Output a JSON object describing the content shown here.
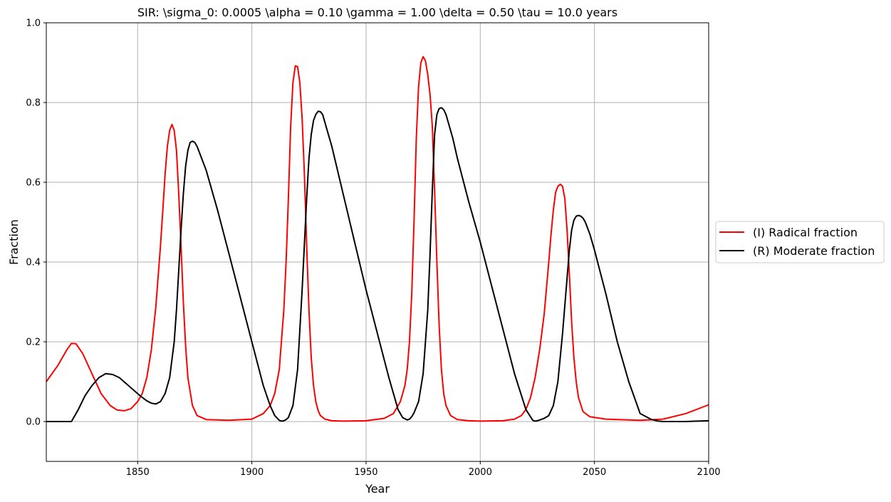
{
  "chart_data": {
    "type": "line",
    "title": "SIR: \\sigma_0: 0.0005 \\alpha = 0.10 \\gamma = 1.00 \\delta = 0.50 \\tau = 10.0 years",
    "xlabel": "Year",
    "ylabel": "Fraction",
    "xlim": [
      1810,
      2100
    ],
    "ylim": [
      -0.1,
      1.0
    ],
    "xticks": [
      1850,
      1900,
      1950,
      2000,
      2050,
      2100
    ],
    "yticks": [
      0.0,
      0.2,
      0.4,
      0.6,
      0.8,
      1.0
    ],
    "grid": true,
    "legend_position": "outside-right",
    "series": [
      {
        "name": "(I) Radical fraction",
        "color": "#ff0000",
        "x": [
          1810,
          1815,
          1819,
          1821,
          1823,
          1826,
          1830,
          1834,
          1838,
          1841,
          1844,
          1847,
          1850,
          1852,
          1854,
          1856,
          1858,
          1860,
          1861,
          1862,
          1863,
          1864,
          1865,
          1866,
          1867,
          1868,
          1869,
          1870,
          1871,
          1872,
          1874,
          1876,
          1880,
          1890,
          1900,
          1905,
          1908,
          1910,
          1912,
          1914,
          1915,
          1916,
          1917,
          1918,
          1919,
          1920,
          1921,
          1922,
          1923,
          1924,
          1925,
          1926,
          1927,
          1928,
          1929,
          1930,
          1932,
          1935,
          1940,
          1950,
          1958,
          1962,
          1965,
          1967,
          1968,
          1969,
          1970,
          1971,
          1972,
          1973,
          1974,
          1975,
          1976,
          1977,
          1978,
          1979,
          1980,
          1981,
          1982,
          1983,
          1984,
          1985,
          1987,
          1990,
          1995,
          2000,
          2010,
          2015,
          2018,
          2020,
          2022,
          2024,
          2026,
          2028,
          2030,
          2031,
          2032,
          2033,
          2034,
          2035,
          2036,
          2037,
          2038,
          2039,
          2040,
          2041,
          2042,
          2043,
          2045,
          2048,
          2055,
          2070,
          2080,
          2090,
          2100
        ],
        "y": [
          0.1,
          0.14,
          0.18,
          0.196,
          0.195,
          0.17,
          0.12,
          0.07,
          0.04,
          0.029,
          0.027,
          0.032,
          0.05,
          0.07,
          0.11,
          0.18,
          0.29,
          0.44,
          0.53,
          0.62,
          0.69,
          0.73,
          0.745,
          0.73,
          0.68,
          0.57,
          0.44,
          0.3,
          0.19,
          0.11,
          0.04,
          0.015,
          0.005,
          0.003,
          0.006,
          0.02,
          0.04,
          0.07,
          0.13,
          0.28,
          0.4,
          0.56,
          0.74,
          0.85,
          0.892,
          0.89,
          0.85,
          0.76,
          0.62,
          0.44,
          0.28,
          0.16,
          0.09,
          0.05,
          0.028,
          0.015,
          0.006,
          0.002,
          0.001,
          0.002,
          0.008,
          0.02,
          0.05,
          0.09,
          0.13,
          0.2,
          0.32,
          0.5,
          0.71,
          0.84,
          0.9,
          0.915,
          0.905,
          0.87,
          0.82,
          0.74,
          0.58,
          0.4,
          0.24,
          0.13,
          0.07,
          0.04,
          0.015,
          0.005,
          0.002,
          0.001,
          0.002,
          0.006,
          0.015,
          0.03,
          0.06,
          0.11,
          0.18,
          0.27,
          0.4,
          0.47,
          0.53,
          0.575,
          0.59,
          0.595,
          0.59,
          0.56,
          0.48,
          0.37,
          0.25,
          0.16,
          0.1,
          0.06,
          0.025,
          0.012,
          0.006,
          0.003,
          0.006,
          0.02,
          0.042
        ]
      },
      {
        "name": "(R) Moderate fraction",
        "color": "#000000",
        "x": [
          1810,
          1818,
          1821,
          1824,
          1827,
          1830,
          1833,
          1836,
          1839,
          1842,
          1845,
          1848,
          1851,
          1854,
          1856,
          1858,
          1860,
          1862,
          1864,
          1866,
          1867,
          1868,
          1869,
          1870,
          1871,
          1872,
          1873,
          1874,
          1875,
          1876,
          1877,
          1878,
          1880,
          1885,
          1890,
          1895,
          1900,
          1905,
          1908,
          1910,
          1912,
          1913,
          1914,
          1915,
          1916,
          1918,
          1920,
          1922,
          1924,
          1925,
          1926,
          1927,
          1928,
          1929,
          1930,
          1931,
          1932,
          1933,
          1935,
          1940,
          1945,
          1950,
          1955,
          1960,
          1964,
          1966,
          1968,
          1969,
          1970,
          1971,
          1973,
          1975,
          1977,
          1978,
          1979,
          1980,
          1981,
          1982,
          1983,
          1984,
          1985,
          1986,
          1987,
          1988,
          1990,
          1995,
          2000,
          2005,
          2010,
          2015,
          2020,
          2023,
          2024,
          2025,
          2026,
          2028,
          2030,
          2032,
          2034,
          2036,
          2038,
          2039,
          2040,
          2041,
          2042,
          2043,
          2044,
          2045,
          2046,
          2047,
          2048,
          2050,
          2055,
          2060,
          2065,
          2070,
          2075,
          2078,
          2080,
          2081,
          2082,
          2085,
          2090,
          2095,
          2100
        ],
        "y": [
          0.0,
          0.0,
          0.0,
          0.03,
          0.065,
          0.09,
          0.11,
          0.12,
          0.118,
          0.11,
          0.095,
          0.08,
          0.065,
          0.052,
          0.046,
          0.044,
          0.05,
          0.07,
          0.11,
          0.2,
          0.28,
          0.38,
          0.48,
          0.57,
          0.64,
          0.68,
          0.7,
          0.703,
          0.7,
          0.69,
          0.675,
          0.66,
          0.63,
          0.53,
          0.42,
          0.31,
          0.2,
          0.09,
          0.04,
          0.015,
          0.003,
          0.001,
          0.002,
          0.005,
          0.01,
          0.04,
          0.13,
          0.33,
          0.56,
          0.66,
          0.72,
          0.755,
          0.77,
          0.778,
          0.777,
          0.77,
          0.75,
          0.73,
          0.69,
          0.57,
          0.45,
          0.33,
          0.22,
          0.11,
          0.03,
          0.01,
          0.004,
          0.006,
          0.012,
          0.022,
          0.05,
          0.12,
          0.28,
          0.42,
          0.58,
          0.72,
          0.77,
          0.785,
          0.787,
          0.782,
          0.77,
          0.75,
          0.73,
          0.71,
          0.66,
          0.55,
          0.45,
          0.34,
          0.23,
          0.12,
          0.03,
          0.003,
          0.001,
          0.002,
          0.004,
          0.008,
          0.015,
          0.04,
          0.1,
          0.22,
          0.36,
          0.43,
          0.48,
          0.505,
          0.515,
          0.517,
          0.515,
          0.51,
          0.5,
          0.485,
          0.47,
          0.43,
          0.32,
          0.2,
          0.1,
          0.02,
          0.005,
          0.001,
          0.0,
          0.0,
          0.0,
          0.0,
          0.0,
          0.001,
          0.002
        ]
      }
    ]
  }
}
